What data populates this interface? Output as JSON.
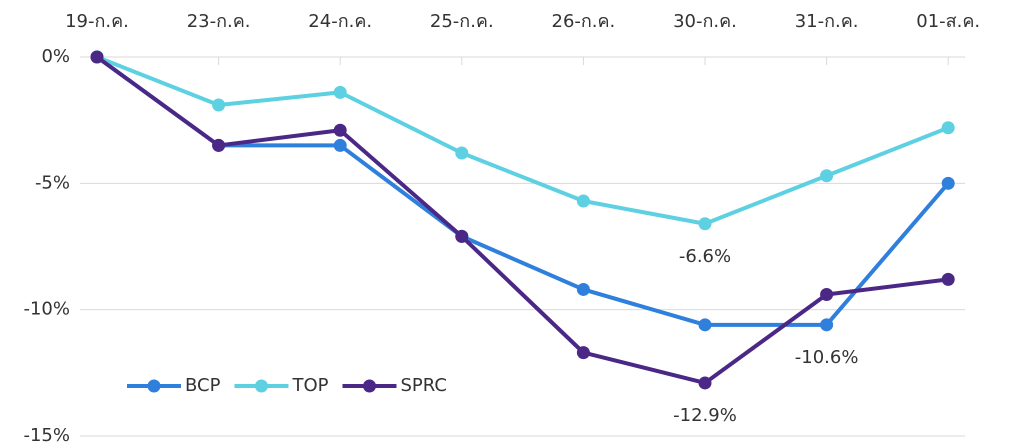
{
  "chart_data": {
    "type": "line",
    "categories": [
      "19-ก.ค.",
      "23-ก.ค.",
      "24-ก.ค.",
      "25-ก.ค.",
      "26-ก.ค.",
      "30-ก.ค.",
      "31-ก.ค.",
      "01-ส.ค."
    ],
    "series": [
      {
        "name": "BCP",
        "color": "#2f7fdc",
        "values": [
          0,
          -3.5,
          -3.5,
          -7.1,
          -9.2,
          -10.6,
          -10.6,
          -5.0
        ],
        "value_labels": [
          null,
          null,
          null,
          null,
          null,
          null,
          "-10.6%",
          null
        ]
      },
      {
        "name": "TOP",
        "color": "#5dd0e2",
        "values": [
          0,
          -1.9,
          -1.4,
          -3.8,
          -5.7,
          -6.6,
          -4.7,
          -2.8
        ],
        "value_labels": [
          null,
          null,
          null,
          null,
          null,
          "-6.6%",
          null,
          null
        ]
      },
      {
        "name": "SPRC",
        "color": "#4b2786",
        "values": [
          0,
          -3.5,
          -2.9,
          -7.1,
          -11.7,
          -12.9,
          -9.4,
          -8.8
        ],
        "value_labels": [
          null,
          null,
          null,
          null,
          null,
          "-12.9%",
          null,
          null
        ]
      }
    ],
    "ylim": [
      -15,
      0
    ],
    "yticks": [
      {
        "value": 0,
        "label": "0%"
      },
      {
        "value": -5,
        "label": "-5%"
      },
      {
        "value": -10,
        "label": "-10%"
      },
      {
        "value": -15,
        "label": "-15%"
      }
    ],
    "grid": true,
    "legend": "bottom-left"
  }
}
